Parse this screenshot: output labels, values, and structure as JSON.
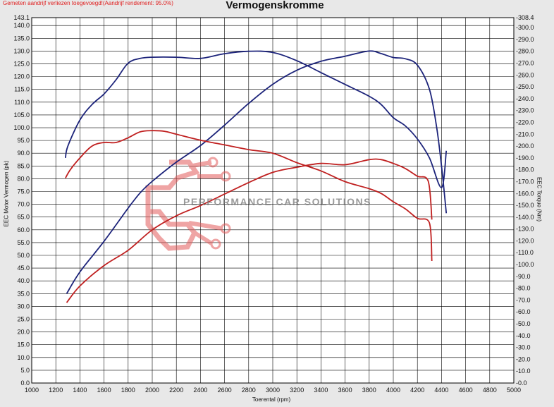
{
  "header": {
    "note": "Gemeten aandrijf verliezen toegevoegd!(Aandrijf rendement: 95.0%)"
  },
  "watermark": {
    "text": "PERFORMANCE CAR SOLUTIONS"
  },
  "chart_data": {
    "type": "line",
    "title": "Vermogenskromme",
    "xlabel": "Toerental (rpm)",
    "ylabel_left": "EEC Motor Vermogen (pk)",
    "ylabel_right": "EEC Torque (Nm)",
    "xlim": [
      1000,
      5000
    ],
    "ylim_left": [
      0,
      143.1
    ],
    "ylim_right": [
      0,
      308.4
    ],
    "x_ticks": [
      1000,
      1200,
      1400,
      1600,
      1800,
      2000,
      2200,
      2400,
      2600,
      2800,
      3000,
      3200,
      3400,
      3600,
      3800,
      4000,
      4200,
      4400,
      4600,
      4800,
      5000
    ],
    "y_left_ticks": [
      0,
      5,
      10,
      15,
      20,
      25,
      30,
      35,
      40,
      45,
      50,
      55,
      60,
      65,
      70,
      75,
      80,
      85,
      90,
      95,
      100,
      105,
      110,
      115,
      120,
      125,
      130,
      135,
      140,
      143.1
    ],
    "y_left_tick_labels": [
      "0.0",
      "5.0",
      "10.0",
      "15.0",
      "20.0",
      "25.0",
      "30.0",
      "35.0",
      "40.0",
      "45.0",
      "50.0",
      "55.0",
      "60.0",
      "65.0",
      "70.0",
      "75.0",
      "80.0",
      "85.0",
      "90.0",
      "95.0",
      "100.0",
      "105.0",
      "110.0",
      "115.0",
      "120.0",
      "125.0",
      "130.0",
      "135.0",
      "140.0",
      "143.1"
    ],
    "y_right_ticks": [
      0,
      10,
      20,
      30,
      40,
      50,
      60,
      70,
      80,
      90,
      100,
      110,
      120,
      130,
      140,
      150,
      160,
      170,
      180,
      190,
      200,
      210,
      220,
      230,
      240,
      250,
      260,
      270,
      280,
      290,
      300,
      308.4
    ],
    "y_right_tick_labels": [
      "-0.0",
      "-10.0",
      "-20.0",
      "-30.0",
      "-40.0",
      "-50.0",
      "-60.0",
      "-70.0",
      "-80.0",
      "-90.0",
      "-100.0",
      "-110.0",
      "-120.0",
      "-130.0",
      "-140.0",
      "-150.0",
      "-160.0",
      "-170.0",
      "-180.0",
      "-190.0",
      "-200.0",
      "-210.0",
      "-220.0",
      "-230.0",
      "-240.0",
      "-250.0",
      "-260.0",
      "-270.0",
      "-280.0",
      "-290.0",
      "-300.0",
      "-308.4"
    ],
    "grid": true,
    "series": [
      {
        "axis": "left",
        "color": "#1c237a",
        "points": [
          [
            1290,
            35
          ],
          [
            1400,
            43.5
          ],
          [
            1600,
            55.5
          ],
          [
            1800,
            68.5
          ],
          [
            1900,
            74.5
          ],
          [
            2000,
            79
          ],
          [
            2200,
            86.5
          ],
          [
            2400,
            93
          ],
          [
            2600,
            101
          ],
          [
            2800,
            109.5
          ],
          [
            3000,
            117
          ],
          [
            3200,
            122.5
          ],
          [
            3400,
            126
          ],
          [
            3600,
            128
          ],
          [
            3800,
            130
          ],
          [
            3900,
            129
          ],
          [
            4000,
            127.5
          ],
          [
            4100,
            127
          ],
          [
            4200,
            124.5
          ],
          [
            4300,
            115
          ],
          [
            4360,
            100
          ],
          [
            4400,
            85
          ],
          [
            4440,
            66.5
          ]
        ]
      },
      {
        "axis": "right",
        "color": "#1c237a",
        "points": [
          [
            1280,
            190
          ],
          [
            1300,
            200
          ],
          [
            1400,
            222
          ],
          [
            1500,
            235
          ],
          [
            1600,
            244
          ],
          [
            1700,
            256
          ],
          [
            1800,
            270
          ],
          [
            1900,
            274
          ],
          [
            2000,
            275
          ],
          [
            2200,
            275
          ],
          [
            2400,
            274
          ],
          [
            2600,
            278
          ],
          [
            2800,
            280
          ],
          [
            3000,
            279
          ],
          [
            3200,
            272
          ],
          [
            3400,
            262
          ],
          [
            3600,
            252
          ],
          [
            3800,
            242
          ],
          [
            3900,
            235
          ],
          [
            4000,
            224
          ],
          [
            4100,
            217
          ],
          [
            4200,
            206
          ],
          [
            4300,
            190
          ],
          [
            4400,
            165
          ],
          [
            4440,
            196
          ]
        ]
      },
      {
        "axis": "left",
        "color": "#c02020",
        "points": [
          [
            1290,
            31.5
          ],
          [
            1400,
            38
          ],
          [
            1600,
            46
          ],
          [
            1800,
            52
          ],
          [
            2000,
            60
          ],
          [
            2200,
            65.5
          ],
          [
            2400,
            69.5
          ],
          [
            2600,
            74
          ],
          [
            2800,
            78.5
          ],
          [
            3000,
            82.5
          ],
          [
            3200,
            84.5
          ],
          [
            3400,
            86
          ],
          [
            3600,
            85.5
          ],
          [
            3800,
            87.5
          ],
          [
            3900,
            87.5
          ],
          [
            4000,
            86
          ],
          [
            4100,
            84
          ],
          [
            4200,
            81
          ],
          [
            4290,
            79
          ],
          [
            4320,
            64
          ]
        ]
      },
      {
        "axis": "right",
        "color": "#c02020",
        "points": [
          [
            1280,
            173
          ],
          [
            1320,
            180
          ],
          [
            1400,
            190
          ],
          [
            1500,
            200
          ],
          [
            1600,
            203
          ],
          [
            1700,
            203
          ],
          [
            1800,
            207
          ],
          [
            1900,
            212
          ],
          [
            2000,
            213
          ],
          [
            2100,
            212.5
          ],
          [
            2200,
            210
          ],
          [
            2400,
            205
          ],
          [
            2600,
            201
          ],
          [
            2800,
            197
          ],
          [
            3000,
            194
          ],
          [
            3200,
            186
          ],
          [
            3400,
            179
          ],
          [
            3600,
            170
          ],
          [
            3800,
            164
          ],
          [
            3900,
            160
          ],
          [
            4000,
            153
          ],
          [
            4100,
            147
          ],
          [
            4200,
            139
          ],
          [
            4300,
            135
          ],
          [
            4320,
            103
          ]
        ]
      }
    ]
  }
}
